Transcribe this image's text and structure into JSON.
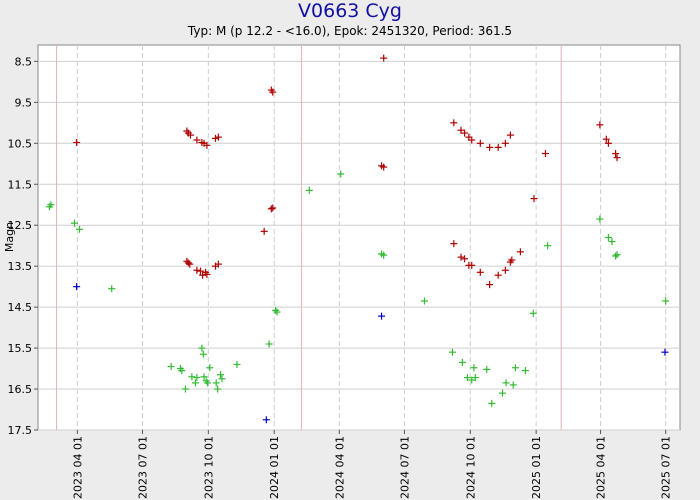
{
  "chart_data": {
    "type": "scatter",
    "title": "V0663 Cyg",
    "subtitle": "Typ: M (p 12.2 - <16.0), Epok: 2451320, Period: 361.5",
    "ylabel": "Magn",
    "xlabel": "",
    "y_inverted": true,
    "ylim": [
      8.1,
      17.5
    ],
    "xlim": [
      "2023-02-05",
      "2025-07-21"
    ],
    "y_ticks": [
      "8.5",
      "9.5",
      "10.5",
      "11.5",
      "12.5",
      "13.5",
      "14.5",
      "15.5",
      "16.5",
      "17.5"
    ],
    "x_ticks": [
      {
        "date": "2023-04-01",
        "label": "2023 04 01"
      },
      {
        "date": "2023-07-01",
        "label": "2023 07 01"
      },
      {
        "date": "2023-10-01",
        "label": "2023 10 01"
      },
      {
        "date": "2024-01-01",
        "label": "2024 01 01"
      },
      {
        "date": "2024-04-01",
        "label": "2024 04 01"
      },
      {
        "date": "2024-07-01",
        "label": "2024 07 01"
      },
      {
        "date": "2024-10-01",
        "label": "2024 10 01"
      },
      {
        "date": "2025-01-01",
        "label": "2025 01 01"
      },
      {
        "date": "2025-04-01",
        "label": "2025 04 01"
      },
      {
        "date": "2025-07-01",
        "label": "2025 07 01"
      }
    ],
    "vertical_markers": [
      "2023-03-03",
      "2024-02-08",
      "2025-02-05"
    ],
    "grid": true,
    "colors": {
      "red": "#b00000",
      "green": "#33bb33",
      "blue": "#0000cc",
      "marker_line": "#e8b0b0",
      "grid": "#cfcfcf"
    },
    "series": [
      {
        "color": "red",
        "points": [
          [
            "2023-03-31",
            10.48
          ],
          [
            "2023-09-01",
            10.2
          ],
          [
            "2023-09-03",
            10.25
          ],
          [
            "2023-09-06",
            10.3
          ],
          [
            "2023-09-15",
            10.42
          ],
          [
            "2023-09-22",
            10.48
          ],
          [
            "2023-09-25",
            10.5
          ],
          [
            "2023-09-29",
            10.55
          ],
          [
            "2023-10-11",
            10.38
          ],
          [
            "2023-10-15",
            10.35
          ],
          [
            "2023-12-28",
            9.2
          ],
          [
            "2023-12-30",
            9.25
          ],
          [
            "2023-09-01",
            13.38
          ],
          [
            "2023-09-03",
            13.42
          ],
          [
            "2023-09-05",
            13.45
          ],
          [
            "2023-09-15",
            13.6
          ],
          [
            "2023-09-20",
            13.62
          ],
          [
            "2023-09-23",
            13.72
          ],
          [
            "2023-09-27",
            13.65
          ],
          [
            "2023-09-29",
            13.7
          ],
          [
            "2023-10-11",
            13.5
          ],
          [
            "2023-10-15",
            13.45
          ],
          [
            "2023-12-18",
            12.65
          ],
          [
            "2023-12-28",
            12.1
          ],
          [
            "2023-12-30",
            12.08
          ],
          [
            "2024-06-02",
            8.42
          ],
          [
            "2024-05-30",
            11.05
          ],
          [
            "2024-06-02",
            11.08
          ],
          [
            "2024-09-08",
            10.0
          ],
          [
            "2024-09-18",
            10.18
          ],
          [
            "2024-09-23",
            10.25
          ],
          [
            "2024-09-29",
            10.35
          ],
          [
            "2024-10-03",
            10.42
          ],
          [
            "2024-10-15",
            10.5
          ],
          [
            "2024-10-28",
            10.6
          ],
          [
            "2024-11-09",
            10.6
          ],
          [
            "2024-11-19",
            10.5
          ],
          [
            "2024-11-26",
            10.3
          ],
          [
            "2024-09-08",
            12.95
          ],
          [
            "2024-09-18",
            13.28
          ],
          [
            "2024-09-23",
            13.32
          ],
          [
            "2024-09-29",
            13.48
          ],
          [
            "2024-10-03",
            13.48
          ],
          [
            "2024-10-15",
            13.65
          ],
          [
            "2024-10-28",
            13.95
          ],
          [
            "2024-11-09",
            13.72
          ],
          [
            "2024-11-19",
            13.6
          ],
          [
            "2024-11-26",
            13.4
          ],
          [
            "2024-11-28",
            13.35
          ],
          [
            "2024-12-10",
            13.15
          ],
          [
            "2024-12-29",
            11.85
          ],
          [
            "2025-01-14",
            10.75
          ],
          [
            "2025-03-31",
            10.05
          ],
          [
            "2025-04-09",
            10.4
          ],
          [
            "2025-04-12",
            10.5
          ],
          [
            "2025-04-22",
            10.75
          ],
          [
            "2025-04-24",
            10.85
          ]
        ]
      },
      {
        "color": "green",
        "points": [
          [
            "2023-02-21",
            12.05
          ],
          [
            "2023-02-23",
            12.0
          ],
          [
            "2023-03-28",
            12.45
          ],
          [
            "2023-04-04",
            12.6
          ],
          [
            "2023-05-19",
            14.05
          ],
          [
            "2023-08-10",
            15.95
          ],
          [
            "2023-08-23",
            16.0
          ],
          [
            "2023-08-25",
            16.05
          ],
          [
            "2023-08-30",
            16.5
          ],
          [
            "2023-09-08",
            16.2
          ],
          [
            "2023-09-13",
            16.35
          ],
          [
            "2023-09-15",
            16.22
          ],
          [
            "2023-09-22",
            15.5
          ],
          [
            "2023-09-24",
            15.65
          ],
          [
            "2023-09-25",
            16.2
          ],
          [
            "2023-09-28",
            16.3
          ],
          [
            "2023-09-30",
            16.35
          ],
          [
            "2023-10-03",
            15.98
          ],
          [
            "2023-10-12",
            16.35
          ],
          [
            "2023-10-14",
            16.5
          ],
          [
            "2023-10-18",
            16.15
          ],
          [
            "2023-10-20",
            16.25
          ],
          [
            "2023-11-10",
            15.9
          ],
          [
            "2023-12-25",
            15.4
          ],
          [
            "2024-01-03",
            14.58
          ],
          [
            "2024-01-05",
            14.62
          ],
          [
            "2024-02-19",
            11.65
          ],
          [
            "2024-04-03",
            11.25
          ],
          [
            "2024-05-30",
            13.2
          ],
          [
            "2024-06-02",
            13.23
          ],
          [
            "2024-07-29",
            14.35
          ],
          [
            "2024-09-06",
            15.6
          ],
          [
            "2024-09-20",
            15.85
          ],
          [
            "2024-09-27",
            16.22
          ],
          [
            "2024-10-03",
            16.28
          ],
          [
            "2024-10-06",
            15.98
          ],
          [
            "2024-10-08",
            16.22
          ],
          [
            "2024-10-24",
            16.02
          ],
          [
            "2024-10-31",
            16.85
          ],
          [
            "2024-11-15",
            16.6
          ],
          [
            "2024-11-20",
            16.35
          ],
          [
            "2024-11-30",
            16.4
          ],
          [
            "2024-12-03",
            15.98
          ],
          [
            "2024-12-17",
            16.05
          ],
          [
            "2024-12-28",
            14.65
          ],
          [
            "2025-01-17",
            13.0
          ],
          [
            "2025-03-31",
            12.35
          ],
          [
            "2025-04-12",
            12.8
          ],
          [
            "2025-04-17",
            12.9
          ],
          [
            "2025-04-22",
            13.25
          ],
          [
            "2025-04-24",
            13.22
          ],
          [
            "2025-07-01",
            14.35
          ]
        ]
      },
      {
        "color": "blue",
        "points": [
          [
            "2023-03-31",
            14.0
          ],
          [
            "2023-12-21",
            17.25
          ],
          [
            "2024-05-30",
            14.72
          ],
          [
            "2025-06-30",
            15.6
          ]
        ]
      }
    ]
  }
}
